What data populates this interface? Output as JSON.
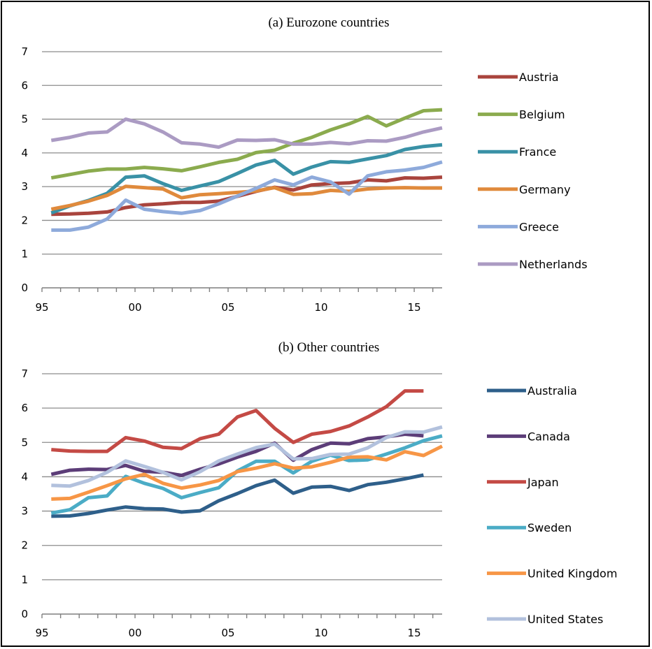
{
  "chart_data": [
    {
      "type": "line",
      "title": "(a) Eurozone countries",
      "ylim": [
        0,
        7
      ],
      "yticks": [
        0,
        1,
        2,
        3,
        4,
        5,
        6,
        7
      ],
      "x_tick_labels": [
        "95",
        "00",
        "05",
        "10",
        "15"
      ],
      "x_tick_years": [
        1995,
        2000,
        2005,
        2010,
        2015
      ],
      "xlim": [
        1995,
        2016.5
      ],
      "x": [
        1995.5,
        1996.5,
        1997.5,
        1998.5,
        1999.5,
        2000.5,
        2001.5,
        2002.5,
        2003.5,
        2004.5,
        2005.5,
        2006.5,
        2007.5,
        2008.5,
        2009.5,
        2010.5,
        2011.5,
        2012.5,
        2013.5,
        2014.5,
        2015.5,
        2016.5
      ],
      "grid": true,
      "legend_position": "right",
      "series": [
        {
          "name": "Austria",
          "color": "#a9443d",
          "values": [
            2.18,
            2.19,
            2.21,
            2.25,
            2.38,
            2.46,
            2.49,
            2.53,
            2.53,
            2.57,
            2.71,
            2.86,
            2.98,
            2.9,
            3.05,
            3.09,
            3.11,
            3.2,
            3.17,
            3.26,
            3.25,
            3.28
          ]
        },
        {
          "name": "Belgium",
          "color": "#8bab4e",
          "values": [
            3.26,
            3.36,
            3.46,
            3.52,
            3.52,
            3.57,
            3.53,
            3.47,
            3.59,
            3.72,
            3.81,
            4.01,
            4.08,
            4.29,
            4.46,
            4.68,
            4.86,
            5.08,
            4.8,
            5.03,
            5.25,
            5.28
          ]
        },
        {
          "name": "France",
          "color": "#3991a6",
          "values": [
            2.22,
            2.43,
            2.59,
            2.8,
            3.28,
            3.32,
            3.09,
            2.89,
            3.02,
            3.15,
            3.39,
            3.64,
            3.78,
            3.37,
            3.58,
            3.74,
            3.72,
            3.82,
            3.92,
            4.1,
            4.19,
            4.24
          ]
        },
        {
          "name": "Germany",
          "color": "#e08a3c",
          "values": [
            2.33,
            2.44,
            2.57,
            2.74,
            3.01,
            2.97,
            2.93,
            2.67,
            2.76,
            2.79,
            2.83,
            2.87,
            2.97,
            2.77,
            2.79,
            2.89,
            2.86,
            2.93,
            2.96,
            2.97,
            2.96,
            2.96
          ]
        },
        {
          "name": "Greece",
          "color": "#8eaadb",
          "values": [
            1.71,
            1.71,
            1.8,
            2.04,
            2.6,
            2.33,
            2.26,
            2.21,
            2.29,
            2.49,
            2.72,
            2.95,
            3.2,
            3.05,
            3.28,
            3.14,
            2.78,
            3.32,
            3.44,
            3.49,
            3.57,
            3.73
          ]
        },
        {
          "name": "Netherlands",
          "color": "#ab9bc3",
          "values": [
            4.37,
            4.46,
            4.59,
            4.62,
            5.0,
            4.86,
            4.62,
            4.3,
            4.26,
            4.17,
            4.38,
            4.37,
            4.39,
            4.26,
            4.26,
            4.31,
            4.27,
            4.36,
            4.35,
            4.46,
            4.62,
            4.74
          ]
        }
      ]
    },
    {
      "type": "line",
      "title": "(b) Other countries",
      "ylim": [
        0,
        7
      ],
      "yticks": [
        0,
        1,
        2,
        3,
        4,
        5,
        6,
        7
      ],
      "x_tick_labels": [
        "95",
        "00",
        "05",
        "10",
        "15"
      ],
      "x_tick_years": [
        1995,
        2000,
        2005,
        2010,
        2015
      ],
      "xlim": [
        1995,
        2016.5
      ],
      "x": [
        1995.5,
        1996.5,
        1997.5,
        1998.5,
        1999.5,
        2000.5,
        2001.5,
        2002.5,
        2003.5,
        2004.5,
        2005.5,
        2006.5,
        2007.5,
        2008.5,
        2009.5,
        2010.5,
        2011.5,
        2012.5,
        2013.5,
        2014.5,
        2015.5,
        2016.5
      ],
      "grid": true,
      "legend_position": "right",
      "series": [
        {
          "name": "Australia",
          "color": "#2e5f8a",
          "values": [
            2.85,
            2.86,
            2.93,
            3.03,
            3.12,
            3.07,
            3.06,
            2.97,
            3.01,
            3.3,
            3.51,
            3.74,
            3.9,
            3.52,
            3.7,
            3.72,
            3.6,
            3.77,
            3.84,
            3.94,
            4.05,
            null
          ]
        },
        {
          "name": "Canada",
          "color": "#5c3d78",
          "values": [
            4.07,
            4.19,
            4.22,
            4.21,
            4.33,
            4.16,
            4.13,
            4.04,
            4.22,
            4.37,
            4.57,
            4.74,
            4.98,
            4.48,
            4.79,
            4.98,
            4.96,
            5.11,
            5.16,
            5.24,
            5.19,
            null
          ]
        },
        {
          "name": "Japan",
          "color": "#c44a45",
          "values": [
            4.79,
            4.75,
            4.74,
            4.74,
            5.14,
            5.04,
            4.86,
            4.82,
            5.11,
            5.24,
            5.74,
            5.93,
            5.41,
            5.0,
            5.24,
            5.32,
            5.48,
            5.74,
            6.04,
            6.5,
            6.5,
            null
          ]
        },
        {
          "name": "Sweden",
          "color": "#4bacc6",
          "values": [
            2.94,
            3.04,
            3.39,
            3.44,
            4.01,
            3.81,
            3.66,
            3.39,
            3.54,
            3.68,
            4.17,
            4.45,
            4.45,
            4.11,
            4.45,
            4.63,
            4.47,
            4.49,
            4.66,
            4.84,
            5.05,
            5.19
          ]
        },
        {
          "name": "United Kingdom",
          "color": "#f79646",
          "values": [
            3.35,
            3.37,
            3.55,
            3.74,
            3.94,
            4.07,
            3.81,
            3.67,
            3.76,
            3.89,
            4.15,
            4.25,
            4.38,
            4.25,
            4.29,
            4.42,
            4.57,
            4.58,
            4.49,
            4.73,
            4.62,
            4.89
          ]
        },
        {
          "name": "United States",
          "color": "#b2c1dd",
          "values": [
            3.75,
            3.73,
            3.89,
            4.13,
            4.46,
            4.3,
            4.13,
            3.91,
            4.15,
            4.46,
            4.66,
            4.85,
            4.95,
            4.52,
            4.53,
            4.65,
            4.66,
            4.84,
            5.14,
            5.31,
            5.3,
            5.45
          ]
        }
      ]
    }
  ]
}
